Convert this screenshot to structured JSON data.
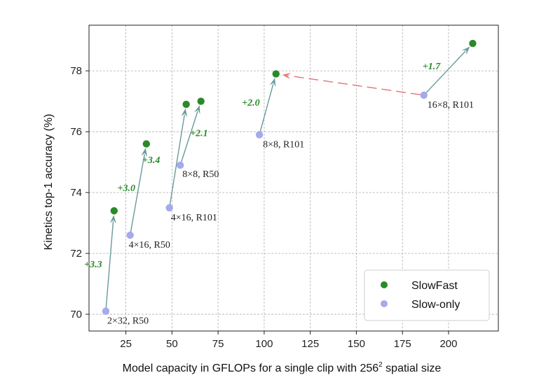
{
  "chart_data": {
    "type": "scatter",
    "xlabel": "Model capacity in GFLOPs for a single clip with 256",
    "xlabel_sup": "2",
    "xlabel_tail": " spatial size",
    "ylabel": "Kinetics top-1 accuracy (%)",
    "xlim": [
      5,
      227
    ],
    "ylim": [
      69.45,
      79.5
    ],
    "xticks": [
      25,
      50,
      75,
      100,
      125,
      150,
      175,
      200
    ],
    "yticks": [
      70,
      72,
      74,
      76,
      78
    ],
    "grid": true,
    "legend_position": "bottom-right",
    "series": [
      {
        "name": "SlowFast",
        "color": "#2a8a2a"
      },
      {
        "name": "Slow-only",
        "color": "#a6a9ec"
      }
    ],
    "pairs": [
      {
        "label": "2×32, R50",
        "slow": {
          "x": 14.1,
          "y": 70.1
        },
        "fast": {
          "x": 18.6,
          "y": 73.4
        },
        "gain": "+3.3"
      },
      {
        "label": "4×16, R50",
        "slow": {
          "x": 27.3,
          "y": 72.6
        },
        "fast": {
          "x": 36.1,
          "y": 75.6
        },
        "gain": "+3.0"
      },
      {
        "label": "4×16, R101",
        "slow": {
          "x": 48.6,
          "y": 73.5
        },
        "fast": {
          "x": 57.7,
          "y": 76.9
        },
        "gain": "+3.4"
      },
      {
        "label": "8×8, R50",
        "slow": {
          "x": 54.5,
          "y": 74.9
        },
        "fast": {
          "x": 65.7,
          "y": 77.0
        },
        "gain": "+2.1"
      },
      {
        "label": "8×8, R101",
        "slow": {
          "x": 97.4,
          "y": 75.9
        },
        "fast": {
          "x": 106.4,
          "y": 77.9
        },
        "gain": "+2.0"
      },
      {
        "label": "16×8, R101",
        "slow": {
          "x": 186.6,
          "y": 77.2
        },
        "fast": {
          "x": 213.1,
          "y": 78.9
        },
        "gain": "+1.7"
      }
    ],
    "dashed_arrow": {
      "from": {
        "x": 186.6,
        "y": 77.2
      },
      "to": {
        "x": 106.4,
        "y": 77.9
      },
      "color": "#e8707a"
    }
  }
}
